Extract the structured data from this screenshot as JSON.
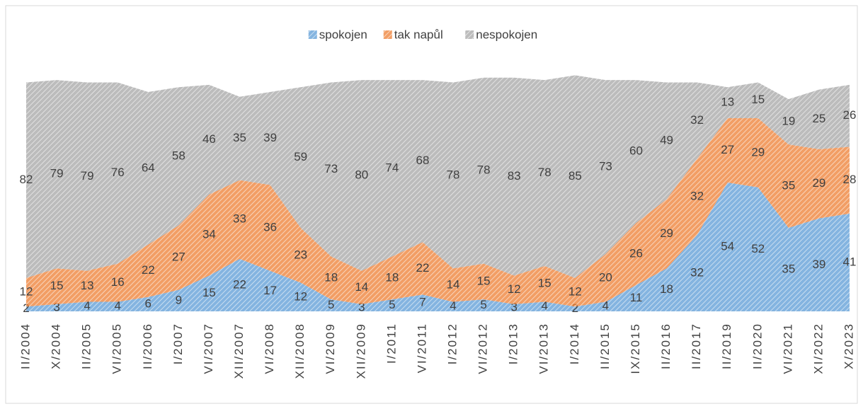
{
  "chart_data": {
    "type": "stacked_area",
    "categories": [
      "II/2004",
      "X/2004",
      "II/2005",
      "VI/2005",
      "II/2006",
      "I/2007",
      "VI/2007",
      "XII/2007",
      "VI/2008",
      "XII/2008",
      "VI/2009",
      "XII/2009",
      "I/2011",
      "VI/2011",
      "I/2012",
      "VI/2012",
      "I/2013",
      "VI/2013",
      "I/2014",
      "II/2015",
      "IX/2015",
      "II/2016",
      "II/2017",
      "II/2019",
      "II/2020",
      "VI/2021",
      "XI/2022",
      "X/2023"
    ],
    "series": [
      {
        "name": "spokojen",
        "color": "#5b9bd5",
        "values": [
          2,
          3,
          4,
          4,
          6,
          9,
          15,
          22,
          17,
          12,
          5,
          3,
          5,
          7,
          4,
          5,
          3,
          4,
          2,
          4,
          11,
          18,
          32,
          54,
          52,
          35,
          39,
          41
        ]
      },
      {
        "name": "tak napůl",
        "color": "#ed7d31",
        "values": [
          12,
          15,
          13,
          16,
          22,
          27,
          34,
          33,
          36,
          23,
          18,
          14,
          18,
          22,
          14,
          15,
          12,
          15,
          12,
          20,
          26,
          29,
          32,
          27,
          29,
          35,
          29,
          28
        ]
      },
      {
        "name": "nespokojen",
        "color": "#a5a5a5",
        "values": [
          82,
          79,
          79,
          76,
          64,
          58,
          46,
          35,
          39,
          59,
          73,
          80,
          74,
          68,
          78,
          78,
          83,
          78,
          85,
          73,
          60,
          49,
          32,
          13,
          15,
          19,
          25,
          26
        ]
      }
    ],
    "ylim": [
      0,
      100
    ],
    "legend": "top"
  }
}
